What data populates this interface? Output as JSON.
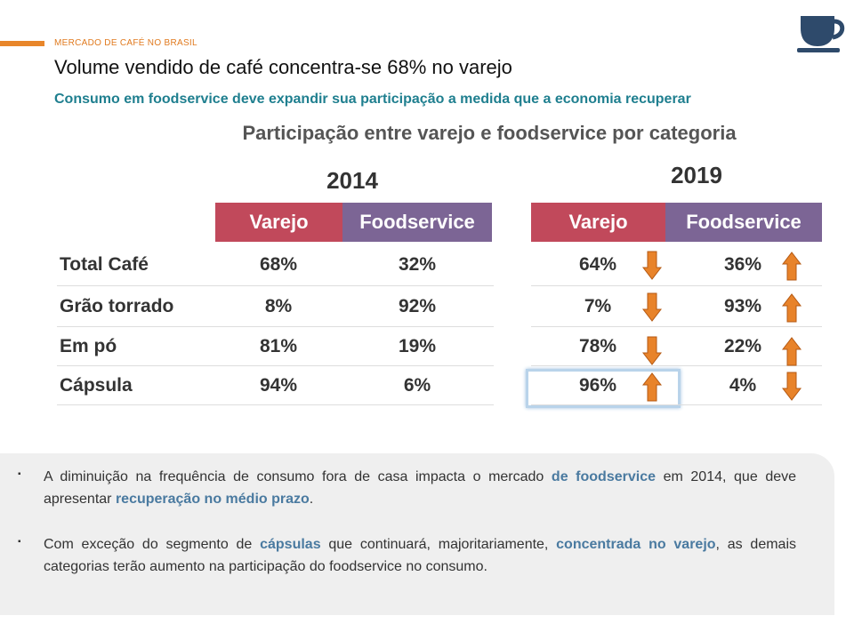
{
  "header": {
    "section": "MERCADO DE CAFÉ NO BRASIL",
    "title": "Volume vendido de café concentra-se 68% no varejo",
    "subtitle": "Consumo em foodservice deve expandir sua participação a medida que a economia recuperar"
  },
  "table_title": "Participação entre varejo e foodservice por categoria",
  "row_labels": [
    "Total Café",
    "Grão torrado",
    "Em pó",
    "Cápsula"
  ],
  "tables": [
    {
      "year": "2014",
      "columns": [
        "Varejo",
        "Foodservice"
      ],
      "rows": [
        [
          "68%",
          "32%"
        ],
        [
          "8%",
          "92%"
        ],
        [
          "81%",
          "19%"
        ],
        [
          "94%",
          "6%"
        ]
      ]
    },
    {
      "year": "2019",
      "columns": [
        "Varejo",
        "Foodservice"
      ],
      "rows": [
        [
          "64%",
          "36%"
        ],
        [
          "7%",
          "93%"
        ],
        [
          "78%",
          "22%"
        ],
        [
          "96%",
          "4%"
        ]
      ],
      "trends": [
        [
          "down",
          "up"
        ],
        [
          "down",
          "up"
        ],
        [
          "down",
          "up"
        ],
        [
          "up",
          "down"
        ]
      ],
      "highlight_cell": [
        3,
        0
      ]
    }
  ],
  "bullets": [
    [
      {
        "text": "A diminuição na frequência de consumo fora de casa impacta o mercado "
      },
      {
        "text": "de foodservice",
        "highlight": true
      },
      {
        "text": " em 2014, que deve apresentar "
      },
      {
        "text": "recuperação no médio prazo",
        "highlight": true
      },
      {
        "text": "."
      }
    ],
    [
      {
        "text": "Com exceção do segmento de "
      },
      {
        "text": "cápsulas",
        "highlight": true
      },
      {
        "text": " que continuará, majoritariamente, "
      },
      {
        "text": "concentrada no varejo",
        "highlight": true
      },
      {
        "text": ", as demais categorias terão aumento na participação do foodservice no consumo."
      }
    ]
  ]
}
